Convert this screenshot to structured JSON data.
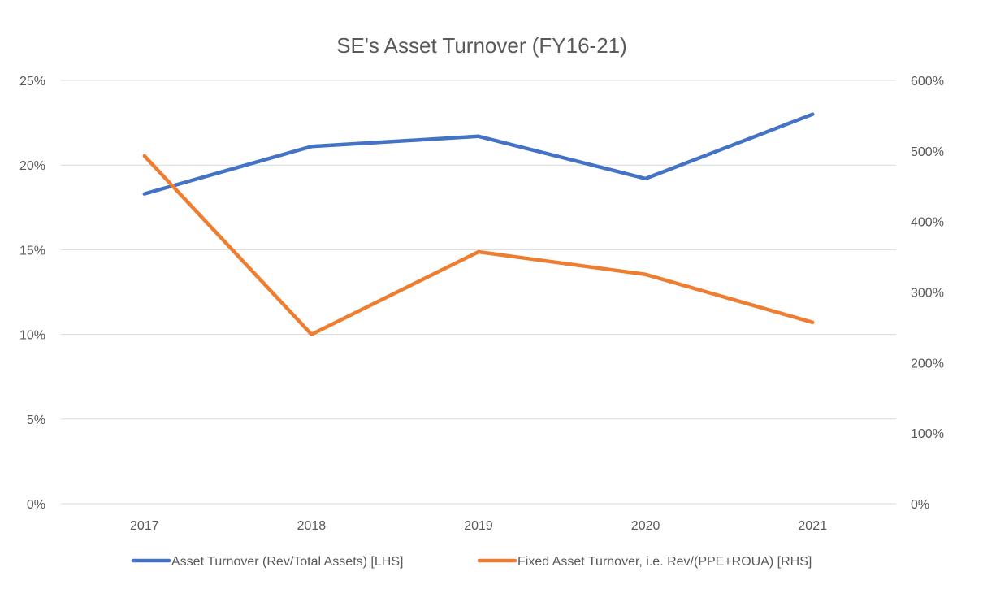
{
  "chart_data": {
    "type": "line",
    "title": "SE's Asset Turnover (FY16-21)",
    "categories": [
      "2017",
      "2018",
      "2019",
      "2020",
      "2021"
    ],
    "y_left": {
      "ticks": [
        "0%",
        "5%",
        "10%",
        "15%",
        "20%",
        "25%"
      ],
      "ylim": [
        0,
        25
      ]
    },
    "y_right": {
      "ticks": [
        "0%",
        "100%",
        "200%",
        "300%",
        "400%",
        "500%",
        "600%"
      ],
      "ylim": [
        0,
        600
      ]
    },
    "grid": true,
    "legend_position": "bottom",
    "series": [
      {
        "name": "Asset Turnover (Rev/Total Assets) [LHS]",
        "axis": "left",
        "color": "#4472c4",
        "values": [
          18.3,
          21.1,
          21.7,
          19.2,
          23.0
        ]
      },
      {
        "name": "Fixed Asset Turnover, i.e. Rev/(PPE+ROUA) [RHS]",
        "axis": "right",
        "color": "#ed7d31",
        "values": [
          493,
          240,
          357,
          325,
          257
        ]
      }
    ]
  }
}
